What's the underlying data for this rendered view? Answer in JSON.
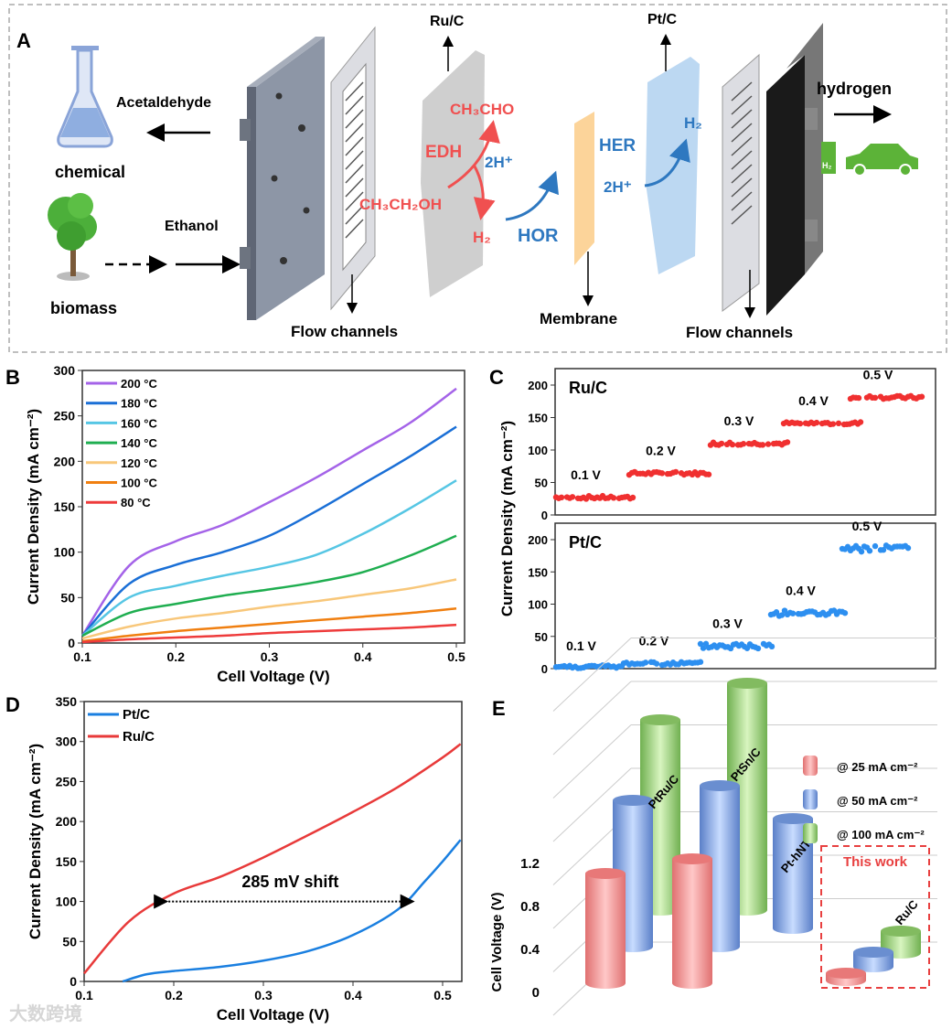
{
  "panel_letters": {
    "a": "A",
    "b": "B",
    "c": "C",
    "d": "D",
    "e": "E"
  },
  "panel_a": {
    "acetaldehyde": "Acetaldehyde",
    "chemical": "chemical",
    "ethanol": "Ethanol",
    "biomass": "biomass",
    "flow_channels_left": "Flow channels",
    "ruc": "Ru/C",
    "ch3cho": "CH₃CHO",
    "edh": "EDH",
    "ch3ch2oh": "CH₃CH₂OH",
    "h2_left": "H₂",
    "hor": "HOR",
    "two_h_left": "2H⁺",
    "membrane": "Membrane",
    "ptc": "Pt/C",
    "her": "HER",
    "h2_right": "H₂",
    "two_h_right": "2H⁺",
    "flow_channels_right": "Flow channels",
    "hydrogen": "hydrogen",
    "h2_station": "H₂",
    "colors": {
      "red": "#f05050",
      "blue": "#2e78c0",
      "membrane": "#fcd49a",
      "green": "#5cb338"
    }
  },
  "watermark": "大数跨境",
  "chart_data": [
    {
      "id": "B",
      "type": "line",
      "xlabel": "Cell Voltage (V)",
      "ylabel": "Current Density (mA cm⁻²)",
      "xlim": [
        0.1,
        0.5
      ],
      "ylim": [
        0,
        300
      ],
      "xticks": [
        "0.1",
        "0.2",
        "0.3",
        "0.4",
        "0.5"
      ],
      "yticks": [
        "0",
        "50",
        "100",
        "150",
        "200",
        "250",
        "300"
      ],
      "legend_position": "top-left",
      "x": [
        0.1,
        0.15,
        0.2,
        0.25,
        0.3,
        0.35,
        0.4,
        0.45,
        0.5
      ],
      "series": [
        {
          "name": "200 °C",
          "color": "#a463e8",
          "values": [
            8,
            85,
            112,
            130,
            155,
            182,
            212,
            242,
            280
          ]
        },
        {
          "name": "180 °C",
          "color": "#1a6fd6",
          "values": [
            8,
            65,
            86,
            100,
            118,
            145,
            175,
            205,
            238
          ]
        },
        {
          "name": "160 °C",
          "color": "#56c6e4",
          "values": [
            8,
            50,
            63,
            74,
            84,
            97,
            120,
            148,
            179
          ]
        },
        {
          "name": "140 °C",
          "color": "#1fae50",
          "values": [
            8,
            33,
            43,
            52,
            59,
            67,
            78,
            96,
            118
          ]
        },
        {
          "name": "120 °C",
          "color": "#f8c77a",
          "values": [
            5,
            18,
            27,
            33,
            40,
            46,
            53,
            60,
            70
          ]
        },
        {
          "name": "100 °C",
          "color": "#f07f10",
          "values": [
            2,
            8,
            13,
            17,
            21,
            25,
            29,
            33,
            38
          ]
        },
        {
          "name": "80 °C",
          "color": "#ee3b3b",
          "values": [
            1,
            4,
            6,
            8,
            11,
            13,
            15,
            17,
            20
          ]
        }
      ]
    },
    {
      "id": "C",
      "type": "scatter",
      "ylabel": "Current Density (mA cm⁻²)",
      "ylim": [
        0,
        220
      ],
      "yticks": [
        "0",
        "50",
        "100",
        "150",
        "200"
      ],
      "panels": [
        {
          "name": "Ru/C",
          "color": "#f03030",
          "steps": [
            {
              "label": "0.1 V",
              "level": 27
            },
            {
              "label": "0.2 V",
              "level": 64
            },
            {
              "label": "0.3 V",
              "level": 110
            },
            {
              "label": "0.4 V",
              "level": 141
            },
            {
              "label": "0.5 V",
              "level": 181
            }
          ]
        },
        {
          "name": "Pt/C",
          "color": "#2d8ff0",
          "steps": [
            {
              "label": "0.1 V",
              "level": 3
            },
            {
              "label": "0.2 V",
              "level": 8
            },
            {
              "label": "0.3 V",
              "level": 35
            },
            {
              "label": "0.4 V",
              "level": 86
            },
            {
              "label": "0.5 V",
              "level": 186
            }
          ]
        }
      ]
    },
    {
      "id": "D",
      "type": "line",
      "xlabel": "Cell Voltage (V)",
      "ylabel": "Current Density (mA cm⁻²)",
      "xlim": [
        0.1,
        0.52
      ],
      "ylim": [
        0,
        350
      ],
      "xticks": [
        "0.1",
        "0.2",
        "0.3",
        "0.4",
        "0.5"
      ],
      "yticks": [
        "0",
        "50",
        "100",
        "150",
        "200",
        "250",
        "300",
        "350"
      ],
      "legend_position": "top-left",
      "annotation": "285 mV shift",
      "series": [
        {
          "name": "Pt/C",
          "color": "#1a7fe0",
          "x": [
            0.143,
            0.17,
            0.2,
            0.25,
            0.3,
            0.35,
            0.4,
            0.45,
            0.48,
            0.5,
            0.52
          ],
          "values": [
            0,
            9,
            13,
            18,
            26,
            38,
            58,
            90,
            125,
            150,
            177
          ]
        },
        {
          "name": "Ru/C",
          "color": "#e83a3a",
          "x": [
            0.1,
            0.15,
            0.2,
            0.25,
            0.3,
            0.35,
            0.4,
            0.45,
            0.5,
            0.52
          ],
          "values": [
            10,
            75,
            110,
            130,
            155,
            183,
            212,
            243,
            280,
            297
          ]
        }
      ]
    },
    {
      "id": "E",
      "type": "bar",
      "ylabel": "Cell Voltage (V)",
      "yticks": [
        "0",
        "0.4",
        "0.8",
        "1.2"
      ],
      "ylim": [
        0,
        1.6
      ],
      "categories": [
        "PtRu/C",
        "PtSn/C",
        "Pt-hNTs",
        "Ru/C"
      ],
      "series": [
        {
          "name": "@ 25 mA cm⁻²",
          "color": "#f08a8a",
          "values": [
            0.75,
            0.85,
            null,
            0.05
          ]
        },
        {
          "name": "@ 50 mA cm⁻²",
          "color": "#6f93d6",
          "values": [
            1.0,
            1.1,
            0.75,
            0.12
          ]
        },
        {
          "name": "@ 100 mA cm⁻²",
          "color": "#8cc868",
          "values": [
            1.3,
            1.55,
            null,
            0.25
          ]
        }
      ],
      "highlight": "This work",
      "legend_position": "top-right"
    }
  ]
}
